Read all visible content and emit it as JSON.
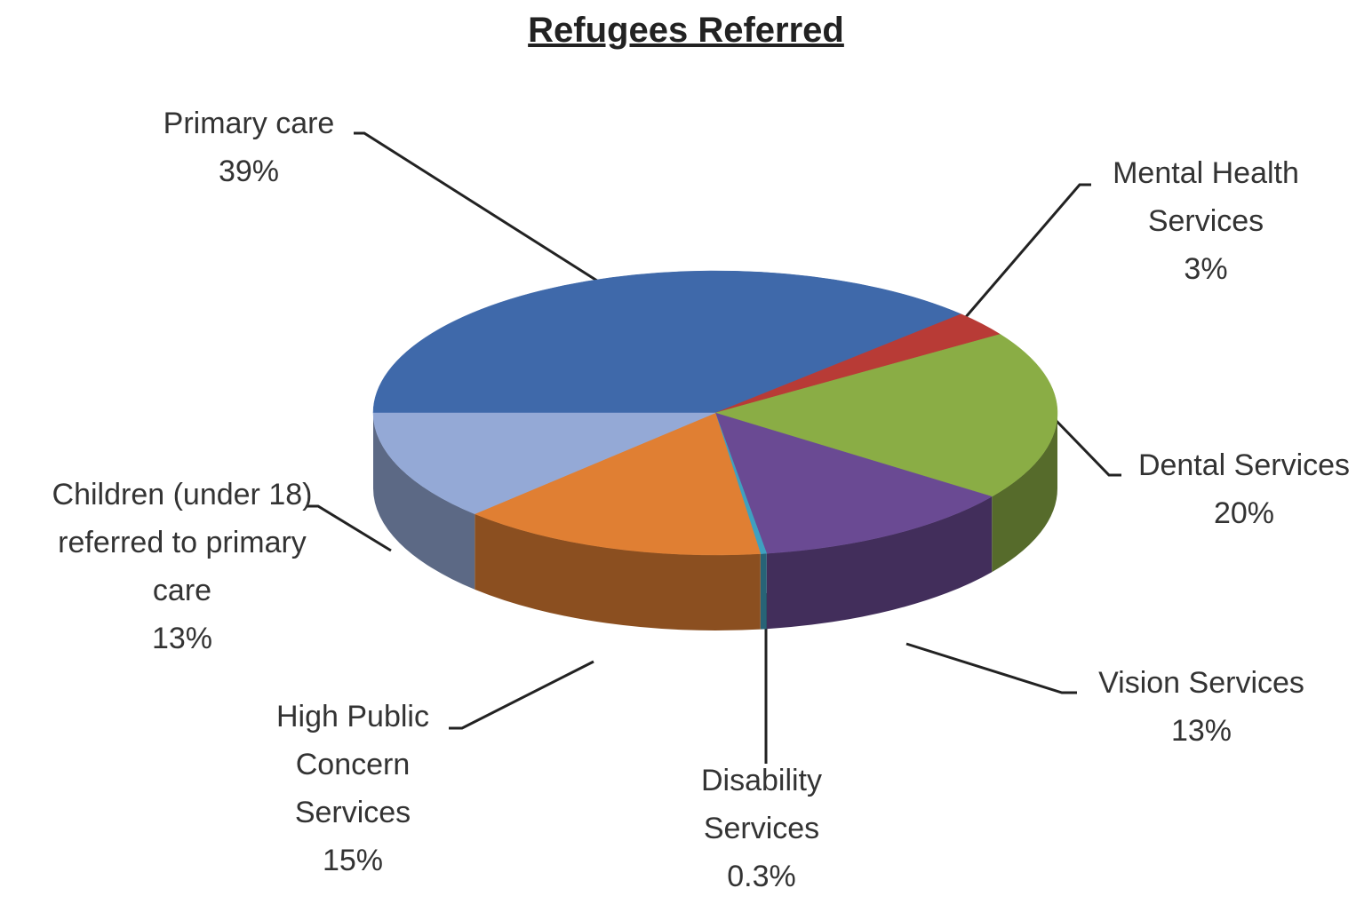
{
  "chart_data": {
    "type": "pie",
    "title": "Refugees Referred",
    "style": "3d",
    "categories": [
      "Primary care",
      "Mental Health Services",
      "Dental Services",
      "Vision Services",
      "Disability Services",
      "High Public Concern Services",
      "Children (under 18) referred to primary care"
    ],
    "values": [
      39,
      3,
      20,
      13,
      0.3,
      15,
      13
    ],
    "value_labels": [
      "39%",
      "3%",
      "20%",
      "13%",
      "0.3%",
      "15%",
      "13%"
    ],
    "colors": [
      "#3f69aa",
      "#b83b36",
      "#8aad45",
      "#6a4a93",
      "#3fa0c0",
      "#e07f33",
      "#94a9d6"
    ]
  }
}
